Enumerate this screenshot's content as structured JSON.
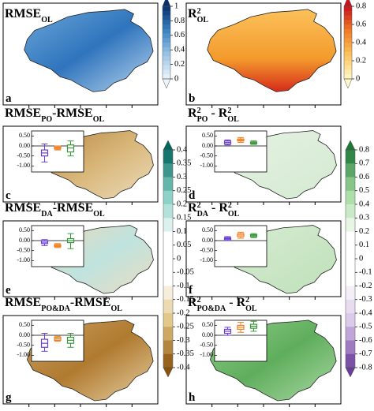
{
  "chart_data": {
    "type": "map_panels",
    "inset": {
      "ylim": [
        -1.3,
        0.75
      ],
      "yticks": [
        {
          "value": 0.5,
          "label": "0.50"
        },
        {
          "value": 0,
          "label": "0.00"
        },
        {
          "value": -0.5,
          "label": "-0.50"
        },
        {
          "value": -1,
          "label": "-1.00"
        }
      ]
    },
    "colorbars": [
      {
        "lim": [
          0,
          1
        ],
        "ticks": [
          1,
          0.8,
          0.6,
          0.4,
          0.2,
          0
        ]
      },
      {
        "lim": [
          0,
          0.8
        ],
        "ticks": [
          0.8,
          0.6,
          0.4,
          0.2,
          0
        ]
      },
      {
        "lim": [
          -0.4,
          0.4
        ],
        "ticks": [
          0.4,
          0.35,
          0.3,
          0.25,
          0.2,
          0.15,
          0.1,
          0.05,
          0,
          -0.05,
          -0.1,
          -0.15,
          -0.2,
          -0.25,
          -0.3,
          -0.35,
          -0.4
        ]
      },
      {
        "lim": [
          -0.8,
          0.8
        ],
        "ticks": [
          0.8,
          0.7,
          0.6,
          0.5,
          0.4,
          0.3,
          0.2,
          0.1,
          0,
          -0.1,
          -0.2,
          -0.3,
          -0.4,
          -0.5,
          -0.6,
          -0.7,
          -0.8
        ]
      }
    ],
    "panels": [
      {
        "label": "a",
        "title": [
          {
            "text": "RMSE"
          },
          {
            "text": "OL",
            "sub": true
          }
        ]
      },
      {
        "label": "b",
        "title": [
          {
            "text": "R"
          },
          {
            "text": "2",
            "sup": true
          },
          {
            "text": "OL",
            "sub": true
          }
        ]
      },
      {
        "label": "c",
        "title": [
          {
            "text": "RMSE"
          },
          {
            "text": "PO",
            "sub": true
          },
          {
            "text": "-RMSE"
          },
          {
            "text": "OL",
            "sub": true
          }
        ],
        "boxes": [
          {
            "color": "#6a3fd6",
            "values": [
              -0.8,
              -0.5,
              -0.35,
              -0.2,
              0.1
            ]
          },
          {
            "color": "#f07f1e",
            "values": [
              -0.2,
              -0.15,
              -0.1,
              -0.05,
              0
            ]
          },
          {
            "color": "#3a9a3a",
            "values": [
              -0.5,
              -0.3,
              -0.1,
              0.05,
              0.25
            ]
          }
        ]
      },
      {
        "label": "d",
        "title": [
          {
            "text": "R"
          },
          {
            "text": "2",
            "sup": true
          },
          {
            "text": "PO",
            "sub": true
          },
          {
            "text": " - R"
          },
          {
            "text": "2",
            "sup": true
          },
          {
            "text": "OL",
            "sub": true
          }
        ],
        "boxes": [
          {
            "color": "#6a3fd6",
            "values": [
              0.05,
              0.1,
              0.18,
              0.25,
              0.3
            ]
          },
          {
            "color": "#f07f1e",
            "values": [
              0.18,
              0.25,
              0.3,
              0.35,
              0.42
            ]
          },
          {
            "color": "#3a9a3a",
            "values": [
              0.08,
              0.12,
              0.15,
              0.2,
              0.25
            ]
          }
        ]
      },
      {
        "label": "e",
        "title": [
          {
            "text": "RMSE"
          },
          {
            "text": "DA",
            "sub": true
          },
          {
            "text": "-RMSE"
          },
          {
            "text": "OL",
            "sub": true
          }
        ],
        "boxes": [
          {
            "color": "#6a3fd6",
            "values": [
              -0.25,
              -0.15,
              -0.08,
              0,
              0.05
            ]
          },
          {
            "color": "#f07f1e",
            "values": [
              -0.35,
              -0.3,
              -0.25,
              -0.2,
              -0.15
            ]
          },
          {
            "color": "#3a9a3a",
            "values": [
              -0.4,
              -0.1,
              0,
              0.1,
              0.35
            ]
          }
        ]
      },
      {
        "label": "f",
        "title": [
          {
            "text": "R"
          },
          {
            "text": "2",
            "sup": true
          },
          {
            "text": "DA",
            "sub": true
          },
          {
            "text": " - R"
          },
          {
            "text": "2",
            "sup": true
          },
          {
            "text": "OL",
            "sub": true
          }
        ],
        "boxes": [
          {
            "color": "#6a3fd6",
            "values": [
              0,
              0.05,
              0.1,
              0.15,
              0.2
            ]
          },
          {
            "color": "#f07f1e",
            "values": [
              0.12,
              0.2,
              0.28,
              0.35,
              0.42
            ]
          },
          {
            "color": "#3a9a3a",
            "values": [
              0.15,
              0.2,
              0.25,
              0.3,
              0.35
            ]
          }
        ]
      },
      {
        "label": "g",
        "title": [
          {
            "text": "RMSE"
          },
          {
            "text": "PO&DA",
            "sub": true
          },
          {
            "text": "-RMSE"
          },
          {
            "text": "OL",
            "sub": true
          }
        ],
        "boxes": [
          {
            "color": "#6a3fd6",
            "values": [
              -0.8,
              -0.6,
              -0.4,
              -0.2,
              0.1
            ]
          },
          {
            "color": "#f07f1e",
            "values": [
              -0.3,
              -0.25,
              -0.18,
              -0.1,
              -0.05
            ]
          },
          {
            "color": "#3a9a3a",
            "values": [
              -0.6,
              -0.4,
              -0.25,
              -0.1,
              0.1
            ]
          }
        ]
      },
      {
        "label": "h",
        "title": [
          {
            "text": "R"
          },
          {
            "text": "2",
            "sup": true
          },
          {
            "text": "PO&DA",
            "sub": true
          },
          {
            "text": " - R"
          },
          {
            "text": "2",
            "sup": true
          },
          {
            "text": "OL",
            "sub": true
          }
        ],
        "boxes": [
          {
            "color": "#6a3fd6",
            "values": [
              0,
              0.1,
              0.2,
              0.3,
              0.4
            ]
          },
          {
            "color": "#f07f1e",
            "values": [
              0.15,
              0.3,
              0.4,
              0.5,
              0.65
            ]
          },
          {
            "color": "#3a9a3a",
            "values": [
              0.2,
              0.35,
              0.45,
              0.55,
              0.7
            ]
          }
        ]
      }
    ]
  }
}
